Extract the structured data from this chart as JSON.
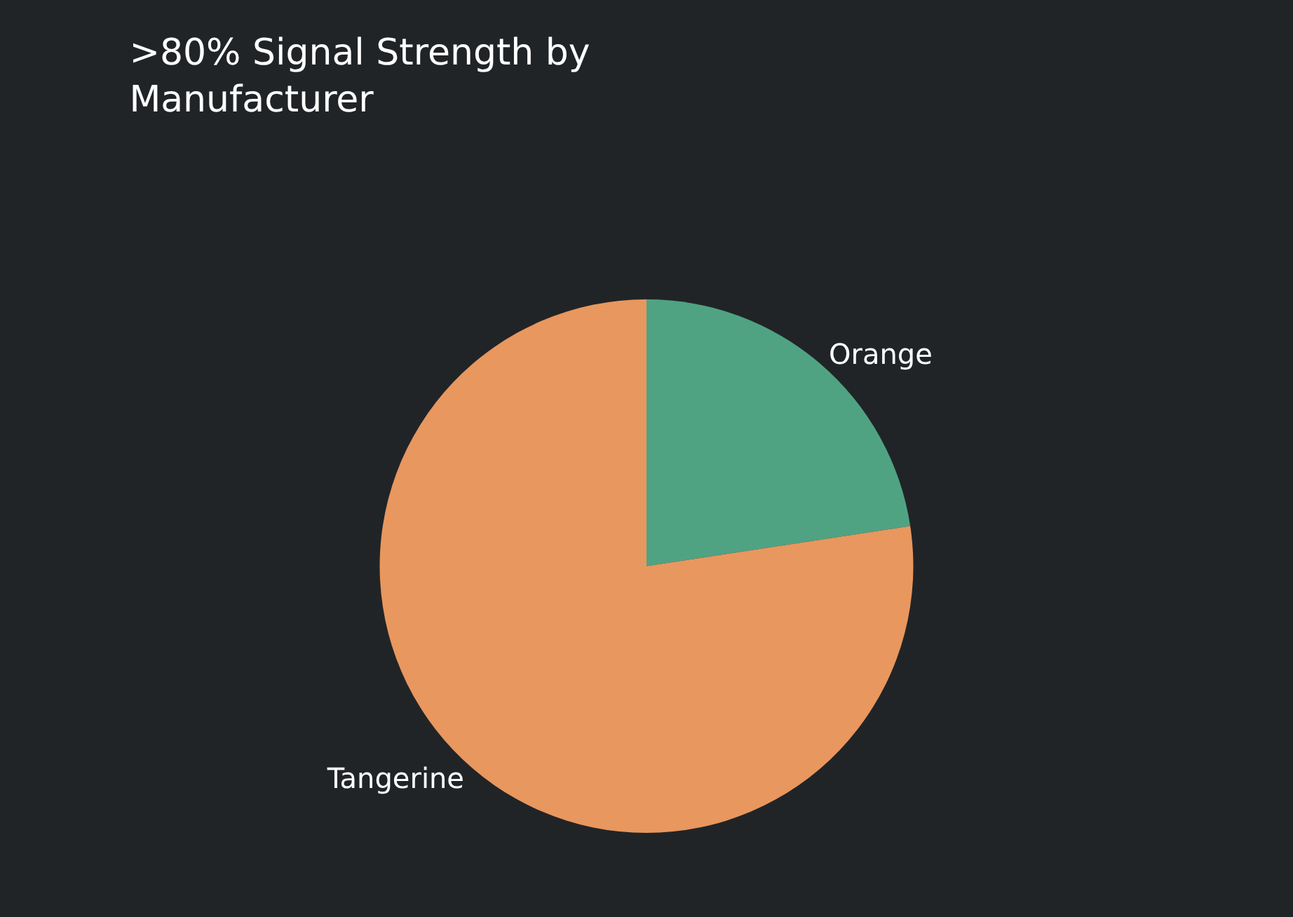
{
  "chart_data": {
    "type": "pie",
    "title": ">80% Signal Strength by Manufacturer",
    "categories": [
      "Orange",
      "Tangerine"
    ],
    "values": [
      22.6,
      77.4
    ],
    "colors": [
      "#4fa383",
      "#e8975e"
    ],
    "legend": false
  }
}
